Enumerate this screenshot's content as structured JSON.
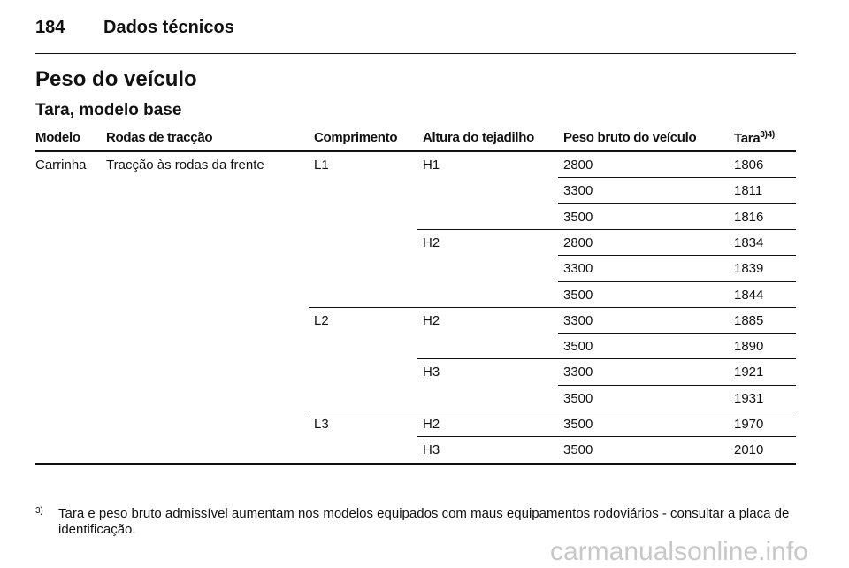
{
  "header": {
    "page_number": "184",
    "section": "Dados técnicos"
  },
  "title": "Peso do veículo",
  "subtitle": "Tara, modelo base",
  "table": {
    "columns": [
      "Modelo",
      "Rodas de tracção",
      "Comprimento",
      "Altura do tejadilho",
      "Peso bruto do veículo",
      "Tara"
    ],
    "tara_note": "3)4)",
    "rows": [
      [
        "Carrinha",
        "Tracção às rodas da frente",
        "L1",
        "H1",
        2800,
        1806
      ],
      [
        3300,
        1811
      ],
      [
        3500,
        1816
      ],
      [
        "H2",
        2800,
        1834
      ],
      [
        3300,
        1839
      ],
      [
        3500,
        1844
      ],
      [
        "L2",
        "H2",
        3300,
        1885
      ],
      [
        3500,
        1890
      ],
      [
        "H3",
        3300,
        1921
      ],
      [
        3500,
        1931
      ],
      [
        "L3",
        "H2",
        3500,
        1970
      ],
      [
        "H3",
        3500,
        2010
      ]
    ]
  },
  "footnote": {
    "marker": "3)",
    "text": "Tara e peso bruto admissível aumentam nos modelos equipados com maus equipamentos rodoviários - consultar a placa de identificação."
  },
  "watermark": "carmanualsonline.info"
}
